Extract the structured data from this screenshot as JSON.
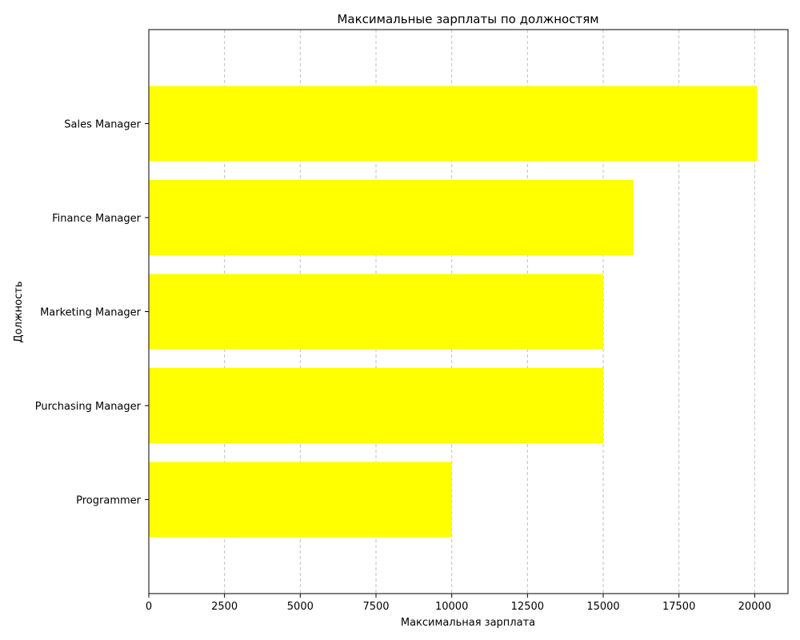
{
  "chart_data": {
    "type": "bar",
    "orientation": "horizontal",
    "title": "Максимальные зарплаты по должностям",
    "xlabel": "Максимальная зарплата",
    "ylabel": "Должность",
    "categories": [
      "Sales Manager",
      "Finance Manager",
      "Marketing Manager",
      "Purchasing Manager",
      "Programmer"
    ],
    "values": [
      20080,
      16000,
      15000,
      15000,
      10000
    ],
    "xlim": [
      0,
      21100
    ],
    "xticks": [
      0,
      2500,
      5000,
      7500,
      10000,
      12500,
      15000,
      17500,
      20000
    ],
    "grid": "x-dashed",
    "bar_color": "#ffff00"
  }
}
